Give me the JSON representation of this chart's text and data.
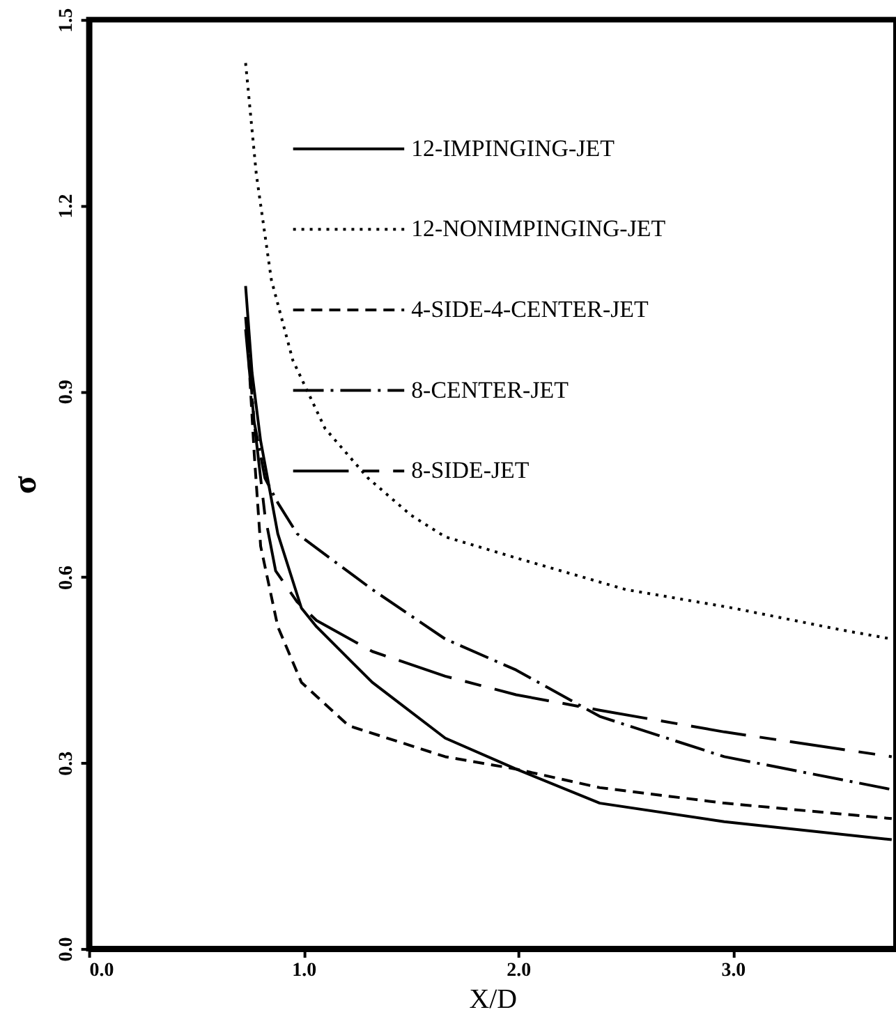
{
  "chart_data": {
    "type": "line",
    "xlabel": "X/D",
    "ylabel": "σ",
    "xlim": [
      0,
      3.76
    ],
    "ylim": [
      0,
      1.5
    ],
    "xticks": [
      {
        "value": 0,
        "label": "0.0"
      },
      {
        "value": 1,
        "label": "1.0"
      },
      {
        "value": 2,
        "label": "2.0"
      },
      {
        "value": 3,
        "label": "3.0"
      }
    ],
    "yticks": [
      {
        "value": 0,
        "label": "0.0"
      },
      0.3,
      0.6,
      0.9,
      1.2,
      1.5
    ],
    "grid": false,
    "legend": "top",
    "marker": "none",
    "series": [
      {
        "name": "12-IMPINGING-JET",
        "color": "#000000",
        "line_style": "solid",
        "x": [
          0.73,
          0.76,
          0.8,
          0.88,
          0.99,
          1.06,
          1.32,
          1.66,
          1.99,
          2.38,
          2.96,
          3.74
        ],
        "values": [
          1.07,
          0.93,
          0.82,
          0.67,
          0.55,
          0.52,
          0.43,
          0.34,
          0.29,
          0.235,
          0.205,
          0.176
        ]
      },
      {
        "name": "12-NONIMPINGING-JET",
        "color": "#000000",
        "line_style": "dotted",
        "x": [
          0.73,
          0.78,
          0.85,
          0.95,
          1.1,
          1.3,
          1.5,
          1.66,
          2.0,
          2.5,
          3.0,
          3.5,
          3.74
        ],
        "values": [
          1.43,
          1.25,
          1.08,
          0.95,
          0.84,
          0.76,
          0.7,
          0.665,
          0.63,
          0.58,
          0.55,
          0.515,
          0.5
        ]
      },
      {
        "name": "4-SIDE-4-CENTER-JET",
        "color": "#000000",
        "line_style": "dashed",
        "x": [
          0.74,
          0.77,
          0.8,
          0.88,
          0.99,
          1.21,
          1.66,
          1.99,
          2.38,
          2.96,
          3.74
        ],
        "values": [
          0.98,
          0.8,
          0.65,
          0.52,
          0.43,
          0.36,
          0.31,
          0.29,
          0.26,
          0.235,
          0.21
        ]
      },
      {
        "name": "8-CENTER-JET",
        "color": "#000000",
        "line_style": "dashdot",
        "x": [
          0.73,
          0.77,
          0.82,
          0.88,
          0.97,
          1.32,
          1.66,
          1.99,
          2.38,
          2.96,
          3.74
        ],
        "values": [
          1.02,
          0.85,
          0.76,
          0.72,
          0.67,
          0.58,
          0.5,
          0.45,
          0.375,
          0.31,
          0.257
        ]
      },
      {
        "name": "8-SIDE-JET",
        "color": "#000000",
        "line_style": "longdash",
        "x": [
          0.73,
          0.77,
          0.82,
          0.87,
          0.97,
          1.06,
          1.32,
          1.66,
          1.99,
          2.38,
          2.96,
          3.74
        ],
        "values": [
          1.0,
          0.85,
          0.7,
          0.61,
          0.56,
          0.53,
          0.48,
          0.44,
          0.41,
          0.385,
          0.35,
          0.31
        ]
      }
    ]
  }
}
